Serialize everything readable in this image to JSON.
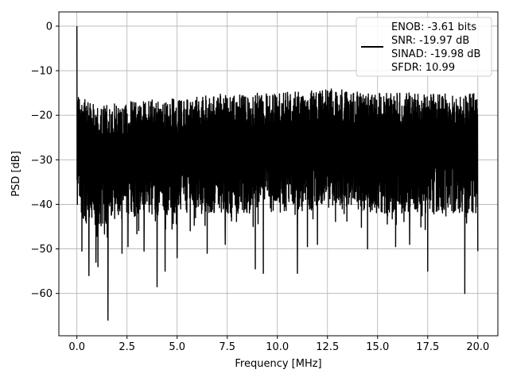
{
  "chart_data": {
    "type": "line",
    "title": "",
    "xlabel": "Frequency [MHz]",
    "ylabel": "PSD [dB]",
    "xlim": [
      -0.9,
      21.0
    ],
    "ylim": [
      -69.5,
      3.2
    ],
    "x_ticks": [
      0.0,
      2.5,
      5.0,
      7.5,
      10.0,
      12.5,
      15.0,
      17.5,
      20.0
    ],
    "x_tick_labels": [
      "0.0",
      "2.5",
      "5.0",
      "7.5",
      "10.0",
      "12.5",
      "15.0",
      "17.5",
      "20.0"
    ],
    "y_ticks": [
      0,
      -10,
      -20,
      -30,
      -40,
      -50,
      -60
    ],
    "y_tick_labels": [
      "0",
      "−10",
      "−20",
      "−30",
      "−40",
      "−50",
      "−60"
    ],
    "grid": true,
    "legend_position": "top-right",
    "line_color": "#000000",
    "series": [
      {
        "legend_lines": [
          "ENOB: -3.61 bits",
          "SNR: -19.97 dB",
          "SINAD: -19.98 dB",
          "SFDR: 10.99"
        ],
        "x_range": [
          0.0,
          20.0
        ],
        "peak": {
          "x": 0.0,
          "y": 0.0
        },
        "envelope": {
          "x": [
            0.0,
            0.5,
            1.0,
            2.5,
            5.0,
            7.5,
            10.0,
            12.5,
            15.0,
            17.5,
            20.0
          ],
          "upper": [
            -15,
            -16,
            -18,
            -17,
            -16,
            -15,
            -15,
            -14,
            -15,
            -15,
            -15
          ],
          "lower": [
            -42,
            -44,
            -45,
            -43,
            -42,
            -42,
            -42,
            -41,
            -42,
            -42,
            -42
          ]
        },
        "dips": [
          {
            "x": 0.25,
            "y": -50.5
          },
          {
            "x": 0.6,
            "y": -56.0
          },
          {
            "x": 0.95,
            "y": -53.0
          },
          {
            "x": 1.05,
            "y": -54.0
          },
          {
            "x": 1.55,
            "y": -66.0
          },
          {
            "x": 2.25,
            "y": -51.0
          },
          {
            "x": 2.55,
            "y": -49.5
          },
          {
            "x": 3.35,
            "y": -50.5
          },
          {
            "x": 4.0,
            "y": -58.5
          },
          {
            "x": 4.4,
            "y": -55.0
          },
          {
            "x": 5.0,
            "y": -52.0
          },
          {
            "x": 6.5,
            "y": -51.0
          },
          {
            "x": 7.4,
            "y": -49.0
          },
          {
            "x": 8.9,
            "y": -54.5
          },
          {
            "x": 9.3,
            "y": -55.5
          },
          {
            "x": 11.0,
            "y": -55.5
          },
          {
            "x": 11.5,
            "y": -49.5
          },
          {
            "x": 12.0,
            "y": -49.0
          },
          {
            "x": 14.5,
            "y": -50.0
          },
          {
            "x": 15.9,
            "y": -49.5
          },
          {
            "x": 16.6,
            "y": -49.0
          },
          {
            "x": 17.5,
            "y": -55.0
          },
          {
            "x": 19.35,
            "y": -60.0
          },
          {
            "x": 20.0,
            "y": -50.5
          }
        ]
      }
    ]
  }
}
